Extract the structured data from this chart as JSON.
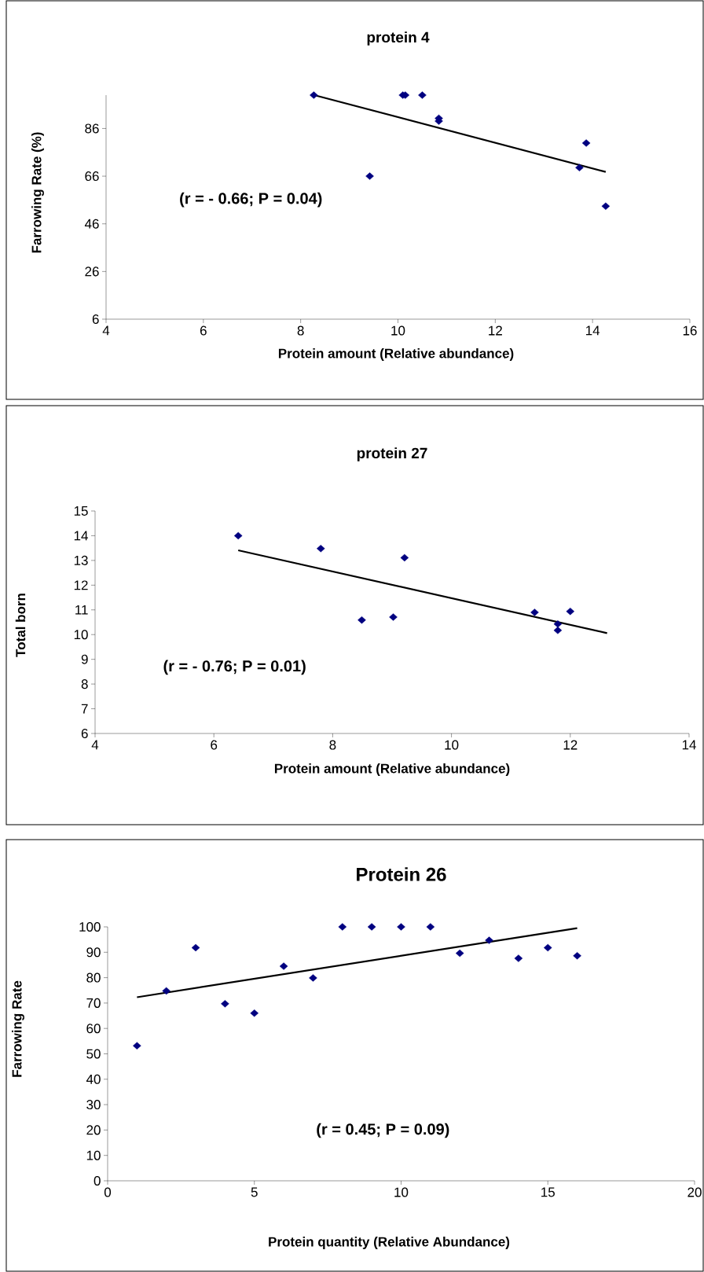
{
  "chart_data": [
    {
      "type": "scatter",
      "title": "protein 4",
      "xlabel": "Protein amount (Relative abundance)",
      "ylabel": "Farrowing Rate (%)",
      "annotations": [
        "(r = - 0.66; P = 0.04)"
      ],
      "xlim": [
        4,
        16
      ],
      "ylim": [
        6,
        100
      ],
      "xticks": [
        4,
        6,
        8,
        10,
        12,
        14,
        16
      ],
      "yticks": [
        6,
        26,
        46,
        66,
        86
      ],
      "series": [
        {
          "marker": "diamond",
          "color": "#000080",
          "x": [
            8.27,
            10.1,
            10.15,
            10.5,
            10.84,
            10.84,
            9.42,
            13.87,
            13.73,
            14.27
          ],
          "values": [
            100,
            100,
            100,
            100,
            90.3,
            89.1,
            66,
            79.9,
            69.6,
            53.4
          ]
        },
        {
          "type": "line",
          "marker": "none",
          "color": "#000000",
          "x": [
            8.28,
            14.27
          ],
          "values": [
            100,
            67.8
          ]
        }
      ]
    },
    {
      "type": "scatter",
      "title": "protein 27",
      "xlabel": "Protein amount (Relative abundance)",
      "ylabel": "Total born",
      "annotations": [
        "(r = - 0.76; P = 0.01)"
      ],
      "xlim": [
        4,
        14
      ],
      "ylim": [
        6,
        15
      ],
      "xticks": [
        4,
        6,
        8,
        10,
        12,
        14
      ],
      "yticks": [
        6,
        7,
        8,
        9,
        10,
        11,
        12,
        13,
        14,
        15
      ],
      "series": [
        {
          "marker": "diamond",
          "color": "#000080",
          "x": [
            6.41,
            7.8,
            9.21,
            8.49,
            9.02,
            11.39,
            11.4,
            12.0,
            11.79,
            11.79
          ],
          "values": [
            14.0,
            13.48,
            13.11,
            10.59,
            10.71,
            null,
            10.9,
            10.94,
            10.43,
            10.17
          ]
        },
        {
          "type": "line",
          "marker": "none",
          "color": "#000000",
          "x": [
            6.41,
            12.62
          ],
          "values": [
            13.41,
            10.06
          ]
        }
      ]
    },
    {
      "type": "scatter",
      "title": "Protein 26",
      "xlabel": "Protein quantity (Relative Abundance)",
      "ylabel": "Farrowing Rate",
      "annotations": [
        "(r = 0.45; P = 0.09)"
      ],
      "xlim": [
        0,
        20
      ],
      "ylim": [
        0,
        100
      ],
      "xticks": [
        0,
        5,
        10,
        15,
        20
      ],
      "yticks": [
        0,
        10,
        20,
        30,
        40,
        50,
        60,
        70,
        80,
        90,
        100
      ],
      "series": [
        {
          "marker": "diamond",
          "color": "#000080",
          "x": [
            1,
            2,
            3,
            4,
            5,
            6,
            7,
            8,
            9,
            10,
            11,
            12,
            13,
            14,
            15,
            16
          ],
          "values": [
            53.2,
            74.8,
            91.8,
            69.7,
            66.0,
            84.5,
            79.9,
            100,
            100,
            100,
            100,
            89.6,
            94.7,
            87.6,
            91.8,
            88.6
          ]
        },
        {
          "type": "line",
          "marker": "none",
          "color": "#000000",
          "x": [
            1,
            16
          ],
          "values": [
            72.3,
            99.5
          ]
        }
      ]
    }
  ]
}
